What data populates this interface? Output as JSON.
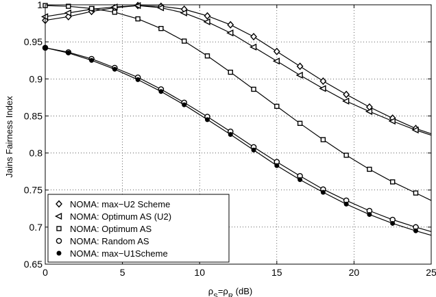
{
  "chart_data": {
    "type": "line",
    "xlabel": "ρ_S=ρ_R (dB)",
    "xlabel_parts": {
      "rho1": "ρ",
      "sub1": "S",
      "eq": "=",
      "rho2": "ρ",
      "sub2": "R",
      "unit": " (dB)"
    },
    "ylabel": "Jains Fairness Index",
    "xlim": [
      0,
      25
    ],
    "ylim": [
      0.65,
      1.0
    ],
    "xticks": [
      0,
      5,
      10,
      15,
      20,
      25
    ],
    "yticks": [
      0.65,
      0.7,
      0.75,
      0.8,
      0.85,
      0.9,
      0.95,
      1
    ],
    "grid": true,
    "legend_position": "bottom-left",
    "series": [
      {
        "name": "NOMA: max−U2 Scheme",
        "marker": "diamond",
        "x": [
          0,
          1.5,
          3,
          4.5,
          6,
          7.5,
          9,
          10.5,
          12,
          13.5,
          15,
          16.5,
          18,
          19.5,
          21,
          22.5,
          24,
          25
        ],
        "y": [
          0.979,
          0.984,
          0.991,
          0.996,
          0.999,
          0.998,
          0.994,
          0.985,
          0.973,
          0.957,
          0.937,
          0.917,
          0.897,
          0.879,
          0.862,
          0.847,
          0.833,
          0.826
        ]
      },
      {
        "name": "NOMA: Optimum AS (U2)",
        "marker": "triangle-left",
        "x": [
          0,
          1.5,
          3,
          4.5,
          6,
          7.5,
          9,
          10.5,
          12,
          13.5,
          15,
          16.5,
          18,
          19.5,
          21,
          22.5,
          24,
          25
        ],
        "y": [
          0.984,
          0.989,
          0.994,
          0.997,
          0.999,
          0.996,
          0.989,
          0.977,
          0.962,
          0.943,
          0.924,
          0.905,
          0.887,
          0.87,
          0.856,
          0.843,
          0.831,
          0.824
        ]
      },
      {
        "name": "NOMA: Optimum AS",
        "marker": "square",
        "x": [
          0,
          1.5,
          3,
          4.5,
          6,
          7.5,
          9,
          10.5,
          12,
          13.5,
          15,
          16.5,
          18,
          19.5,
          21,
          22.5,
          24,
          25
        ],
        "y": [
          0.999,
          0.998,
          0.995,
          0.99,
          0.981,
          0.968,
          0.951,
          0.931,
          0.909,
          0.886,
          0.863,
          0.84,
          0.818,
          0.797,
          0.778,
          0.761,
          0.746,
          0.736
        ]
      },
      {
        "name": "NOMA: Random AS",
        "marker": "circle",
        "x": [
          0,
          1.5,
          3,
          4.5,
          6,
          7.5,
          9,
          10.5,
          12,
          13.5,
          15,
          16.5,
          18,
          19.5,
          21,
          22.5,
          24,
          25
        ],
        "y": [
          0.942,
          0.936,
          0.927,
          0.915,
          0.902,
          0.886,
          0.868,
          0.849,
          0.829,
          0.808,
          0.788,
          0.769,
          0.751,
          0.736,
          0.722,
          0.71,
          0.7,
          0.694
        ]
      },
      {
        "name": "NOMA: max−U1Scheme",
        "marker": "dot",
        "x": [
          0,
          1.5,
          3,
          4.5,
          6,
          7.5,
          9,
          10.5,
          12,
          13.5,
          15,
          16.5,
          18,
          19.5,
          21,
          22.5,
          24,
          25
        ],
        "y": [
          0.942,
          0.935,
          0.925,
          0.913,
          0.899,
          0.883,
          0.865,
          0.845,
          0.825,
          0.804,
          0.783,
          0.764,
          0.747,
          0.731,
          0.717,
          0.705,
          0.695,
          0.689
        ]
      }
    ]
  }
}
